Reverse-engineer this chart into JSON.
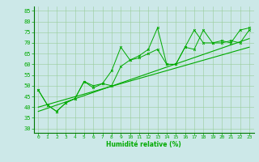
{
  "xlabel": "Humidité relative (%)",
  "background_color": "#cce8e8",
  "line_color": "#00aa00",
  "grid_color": "#99cc99",
  "spine_color": "#007700",
  "xlim": [
    -0.5,
    23.5
  ],
  "ylim": [
    28,
    87
  ],
  "yticks": [
    30,
    35,
    40,
    45,
    50,
    55,
    60,
    65,
    70,
    75,
    80,
    85
  ],
  "xticks": [
    0,
    1,
    2,
    3,
    4,
    5,
    6,
    7,
    8,
    9,
    10,
    11,
    12,
    13,
    14,
    15,
    16,
    17,
    18,
    19,
    20,
    21,
    22,
    23
  ],
  "series1": [
    48,
    41,
    38,
    42,
    44,
    52,
    50,
    51,
    50,
    59,
    62,
    63,
    65,
    67,
    60,
    60,
    68,
    67,
    76,
    70,
    70,
    71,
    70,
    76
  ],
  "series2": [
    48,
    41,
    38,
    42,
    44,
    52,
    49,
    51,
    57,
    68,
    62,
    64,
    67,
    77,
    60,
    60,
    68,
    76,
    70,
    70,
    71,
    70,
    76,
    77
  ],
  "trend1": [
    38,
    72
  ],
  "trend2": [
    40,
    68
  ],
  "trend_x": [
    0,
    23
  ]
}
